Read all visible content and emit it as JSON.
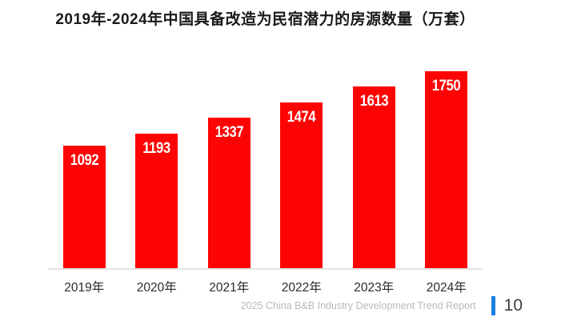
{
  "chart_data": {
    "type": "bar",
    "title": "2019年-2024年中国具备改造为民宿潜力的房源数量（万套）",
    "categories": [
      "2019年",
      "2020年",
      "2021年",
      "2022年",
      "2023年",
      "2024年"
    ],
    "values": [
      1092,
      1193,
      1337,
      1474,
      1613,
      1750
    ],
    "xlabel": "",
    "ylabel": "",
    "ylim": [
      0,
      1750
    ],
    "grid": false,
    "legend": "none",
    "bar_color": "#fd0404",
    "value_label_color": "#ffffff",
    "value_label_position": "inside-top",
    "axis_line_color": "#e3e3e3"
  },
  "footer": {
    "report_label": "2025 China B&B Industry Development Trend Report",
    "page_number": "10",
    "accent_color": "#1b7fe0"
  }
}
